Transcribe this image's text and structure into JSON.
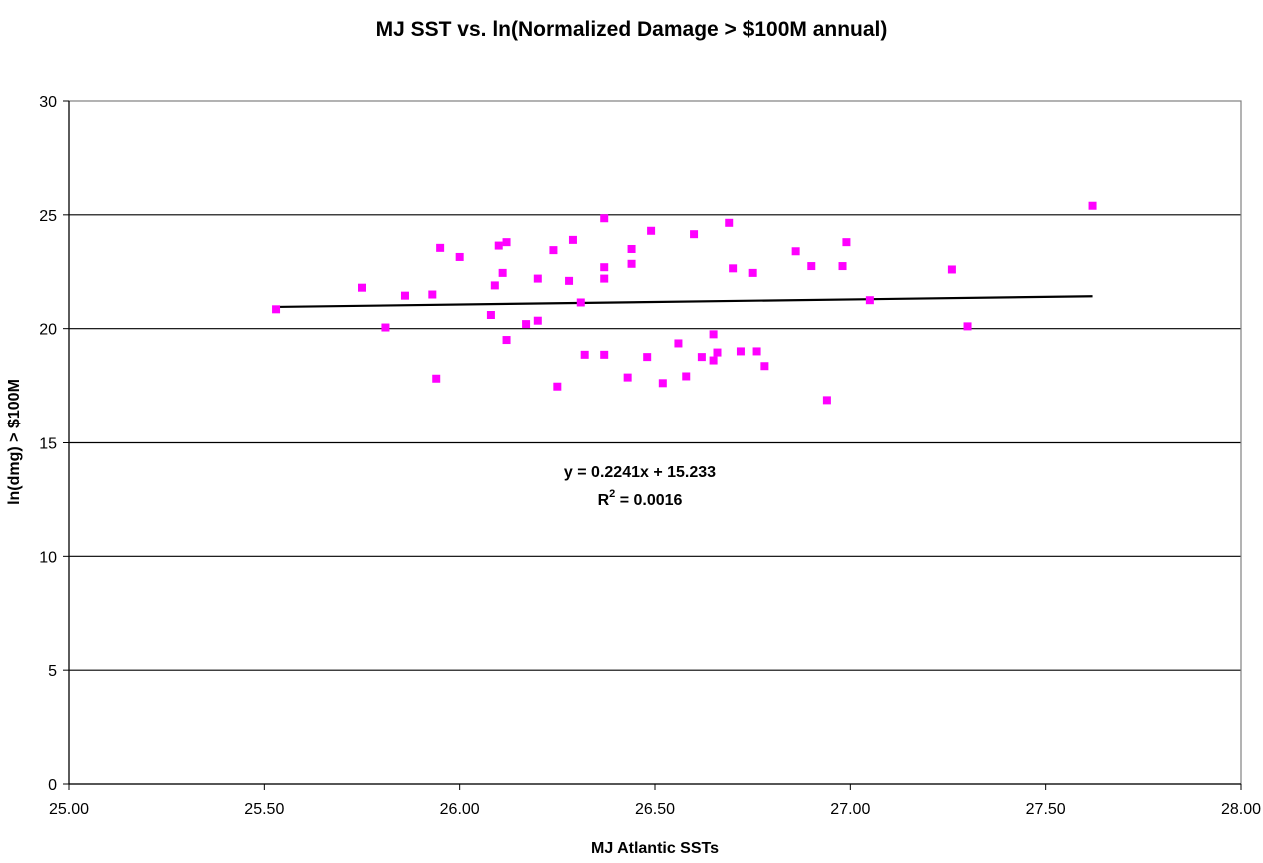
{
  "chart_data": {
    "type": "scatter",
    "title": "MJ SST vs. ln(Normalized Damage > $100M annual)",
    "xlabel": "MJ Atlantic SSTs",
    "ylabel": "ln(dmg) > $100M",
    "xlim": [
      25.0,
      28.0
    ],
    "ylim": [
      0,
      30
    ],
    "x_ticks": [
      "25.00",
      "25.50",
      "26.00",
      "26.50",
      "27.00",
      "27.50",
      "28.00"
    ],
    "y_ticks": [
      "0",
      "5",
      "10",
      "15",
      "20",
      "25",
      "30"
    ],
    "grid": "horizontal",
    "marker_color": "#ff00ff",
    "trendline_color": "#000000",
    "points": [
      [
        25.53,
        20.85
      ],
      [
        25.75,
        21.8
      ],
      [
        25.81,
        20.05
      ],
      [
        25.86,
        21.45
      ],
      [
        25.93,
        21.5
      ],
      [
        25.94,
        17.8
      ],
      [
        25.95,
        23.55
      ],
      [
        26.0,
        23.15
      ],
      [
        26.08,
        20.6
      ],
      [
        26.09,
        21.9
      ],
      [
        26.1,
        23.65
      ],
      [
        26.11,
        22.45
      ],
      [
        26.12,
        23.8
      ],
      [
        26.12,
        19.5
      ],
      [
        26.17,
        20.2
      ],
      [
        26.2,
        22.2
      ],
      [
        26.2,
        20.35
      ],
      [
        26.24,
        23.45
      ],
      [
        26.25,
        17.45
      ],
      [
        26.28,
        22.1
      ],
      [
        26.29,
        23.9
      ],
      [
        26.31,
        21.15
      ],
      [
        26.32,
        18.85
      ],
      [
        26.37,
        24.85
      ],
      [
        26.37,
        22.7
      ],
      [
        26.37,
        22.2
      ],
      [
        26.37,
        18.85
      ],
      [
        26.43,
        17.85
      ],
      [
        26.44,
        23.5
      ],
      [
        26.44,
        22.85
      ],
      [
        26.48,
        18.75
      ],
      [
        26.49,
        24.3
      ],
      [
        26.52,
        17.6
      ],
      [
        26.56,
        19.35
      ],
      [
        26.58,
        17.9
      ],
      [
        26.6,
        24.15
      ],
      [
        26.62,
        18.75
      ],
      [
        26.65,
        19.75
      ],
      [
        26.65,
        18.6
      ],
      [
        26.66,
        18.95
      ],
      [
        26.69,
        24.65
      ],
      [
        26.7,
        22.65
      ],
      [
        26.72,
        19.0
      ],
      [
        26.75,
        22.45
      ],
      [
        26.76,
        19.0
      ],
      [
        26.78,
        18.35
      ],
      [
        26.86,
        23.4
      ],
      [
        26.9,
        22.75
      ],
      [
        26.94,
        16.85
      ],
      [
        26.98,
        22.75
      ],
      [
        26.99,
        23.8
      ],
      [
        27.05,
        21.25
      ],
      [
        27.26,
        22.6
      ],
      [
        27.3,
        20.1
      ],
      [
        27.62,
        25.4
      ]
    ],
    "trendline": {
      "slope": 0.2241,
      "intercept": 15.233,
      "x_range": [
        25.53,
        27.62
      ],
      "equation": "y = 0.2241x + 15.233",
      "r2_prefix": "R",
      "r2_sup": "2",
      "r2_suffix": " = 0.0016"
    }
  }
}
